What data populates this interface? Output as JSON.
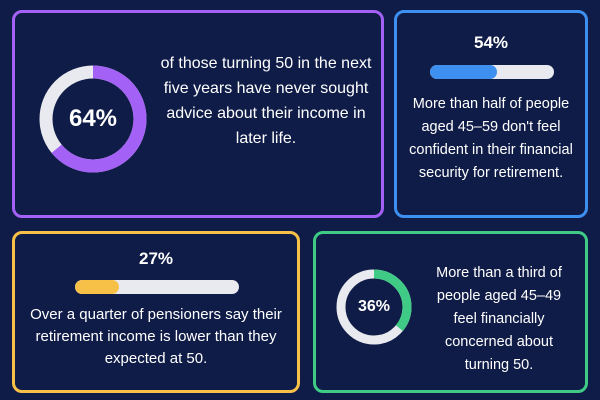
{
  "stats": [
    {
      "value": "64%",
      "fraction": 0.64,
      "text": "of those turning 50 in the next five years have never sought advice about their income in later life.",
      "color": "#a461f5",
      "visual": "donut"
    },
    {
      "value": "54%",
      "fraction": 0.54,
      "text": "More than half of people aged 45–59 don't feel confident in their financial security for retirement.",
      "color": "#3d8ff0",
      "visual": "bar"
    },
    {
      "value": "27%",
      "fraction": 0.27,
      "text": "Over a quarter of pensioners say their retirement income is lower than they expected at 50.",
      "color": "#f7c148",
      "visual": "bar"
    },
    {
      "value": "36%",
      "fraction": 0.36,
      "text": "More than a third of people aged 45–49 feel financially concerned about turning 50.",
      "color": "#3fcb86",
      "visual": "donut"
    }
  ],
  "colors": {
    "background": "#0f1c47",
    "track": "#e9eaef",
    "text": "#ffffff"
  }
}
